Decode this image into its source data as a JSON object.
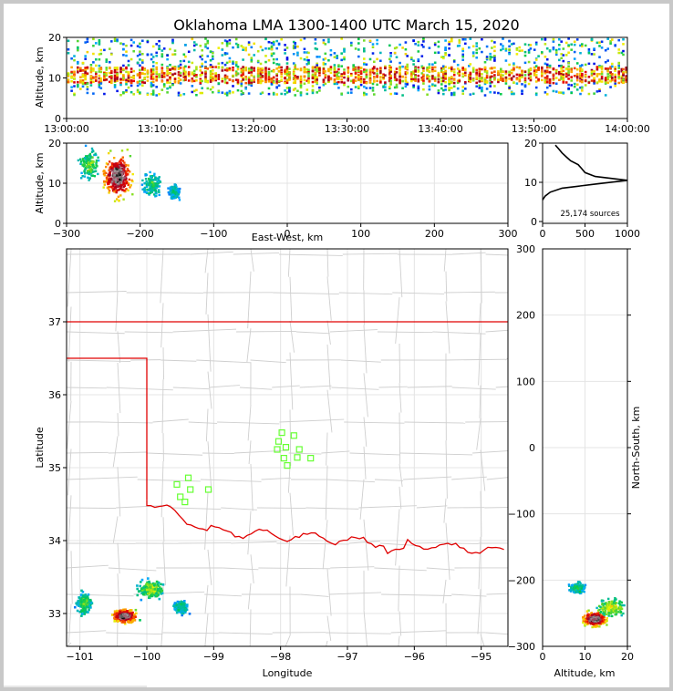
{
  "chart_data": {
    "title": "Oklahoma LMA 1300-1400 UTC March 15, 2020",
    "panels": {
      "time_altitude": {
        "type": "scatter",
        "ylabel": "Altitude, km",
        "xlim": [
          "13:00:00",
          "14:00:00"
        ],
        "ylim": [
          0,
          20
        ],
        "xticks": [
          "13:00:00",
          "13:10:00",
          "13:20:00",
          "13:30:00",
          "13:40:00",
          "13:50:00",
          "14:00:00"
        ],
        "yticks": [
          0,
          10,
          20
        ],
        "source_band_km": [
          6,
          20
        ],
        "core_band_km": [
          9,
          13
        ]
      },
      "ew_altitude": {
        "type": "heatmap",
        "xlabel": "East-West, km",
        "ylabel": "Altitude, km",
        "xlim": [
          -300,
          300
        ],
        "ylim": [
          0,
          20
        ],
        "xticks": [
          -300,
          -200,
          -100,
          0,
          100,
          200,
          300
        ],
        "yticks": [
          0,
          10,
          20
        ],
        "clusters": [
          {
            "x": -232,
            "y": 12,
            "w": 28,
            "h": 8,
            "peak": 1
          },
          {
            "x": -270,
            "y": 15,
            "w": 20,
            "h": 6,
            "peak": 0.35
          },
          {
            "x": -185,
            "y": 10,
            "w": 20,
            "h": 5,
            "peak": 0.3
          },
          {
            "x": -155,
            "y": 8,
            "w": 12,
            "h": 3,
            "peak": 0.25
          }
        ]
      },
      "altitude_histogram": {
        "type": "line",
        "xlim": [
          0,
          1000
        ],
        "ylim": [
          0,
          20
        ],
        "xticks": [
          0,
          500,
          1000
        ],
        "yticks": [
          0,
          10,
          20
        ],
        "annotation": "25,174 sources",
        "profile": [
          {
            "alt": 5.5,
            "count": 0
          },
          {
            "alt": 6.5,
            "count": 30
          },
          {
            "alt": 7.5,
            "count": 90
          },
          {
            "alt": 8.5,
            "count": 230
          },
          {
            "alt": 9.5,
            "count": 600
          },
          {
            "alt": 10.5,
            "count": 1000
          },
          {
            "alt": 11.5,
            "count": 620
          },
          {
            "alt": 12.5,
            "count": 500
          },
          {
            "alt": 13.5,
            "count": 460
          },
          {
            "alt": 14.5,
            "count": 420
          },
          {
            "alt": 15.5,
            "count": 330
          },
          {
            "alt": 16.5,
            "count": 280
          },
          {
            "alt": 17.5,
            "count": 230
          },
          {
            "alt": 18.5,
            "count": 190
          },
          {
            "alt": 19.5,
            "count": 150
          }
        ]
      },
      "plan_view": {
        "type": "heatmap",
        "xlabel": "Longitude",
        "ylabel": "Latitude",
        "xlim": [
          -101.2,
          -94.6
        ],
        "ylim": [
          32.55,
          38.0
        ],
        "xticks": [
          -101,
          -100,
          -99,
          -98,
          -97,
          -96,
          -95
        ],
        "yticks": [
          33,
          34,
          35,
          36,
          37
        ],
        "stations": [
          {
            "lon": -97.98,
            "lat": 35.48
          },
          {
            "lon": -97.8,
            "lat": 35.44
          },
          {
            "lon": -98.03,
            "lat": 35.36
          },
          {
            "lon": -98.05,
            "lat": 35.25
          },
          {
            "lon": -97.92,
            "lat": 35.28
          },
          {
            "lon": -97.72,
            "lat": 35.25
          },
          {
            "lon": -97.95,
            "lat": 35.13
          },
          {
            "lon": -97.75,
            "lat": 35.14
          },
          {
            "lon": -97.55,
            "lat": 35.13
          },
          {
            "lon": -97.9,
            "lat": 35.03
          },
          {
            "lon": -99.38,
            "lat": 34.86
          },
          {
            "lon": -99.55,
            "lat": 34.77
          },
          {
            "lon": -99.35,
            "lat": 34.7
          },
          {
            "lon": -99.08,
            "lat": 34.7
          },
          {
            "lon": -99.5,
            "lat": 34.6
          },
          {
            "lon": -99.43,
            "lat": 34.53
          }
        ],
        "clusters": [
          {
            "lon": -100.35,
            "lat": 32.98,
            "w": 0.28,
            "h": 0.13,
            "peak": 1
          },
          {
            "lon": -99.95,
            "lat": 33.35,
            "w": 0.3,
            "h": 0.2,
            "peak": 0.4
          },
          {
            "lon": -100.95,
            "lat": 33.15,
            "w": 0.16,
            "h": 0.22,
            "peak": 0.35
          },
          {
            "lon": -99.5,
            "lat": 33.1,
            "w": 0.18,
            "h": 0.15,
            "peak": 0.28
          }
        ]
      },
      "ns_altitude": {
        "type": "heatmap",
        "xlabel": "Altitude, km",
        "ylabel": "North-South, km",
        "xlim": [
          0,
          20
        ],
        "ylim": [
          -300,
          300
        ],
        "xticks": [
          0,
          10,
          20
        ],
        "yticks": [
          -300,
          -200,
          -100,
          0,
          100,
          200,
          300
        ],
        "clusters": [
          {
            "x": 12,
            "y": -257,
            "w": 4,
            "h": 16,
            "peak": 1
          },
          {
            "x": 16,
            "y": -240,
            "w": 5,
            "h": 22,
            "peak": 0.45
          },
          {
            "x": 8,
            "y": -210,
            "w": 3,
            "h": 14,
            "peak": 0.3
          }
        ]
      }
    }
  }
}
